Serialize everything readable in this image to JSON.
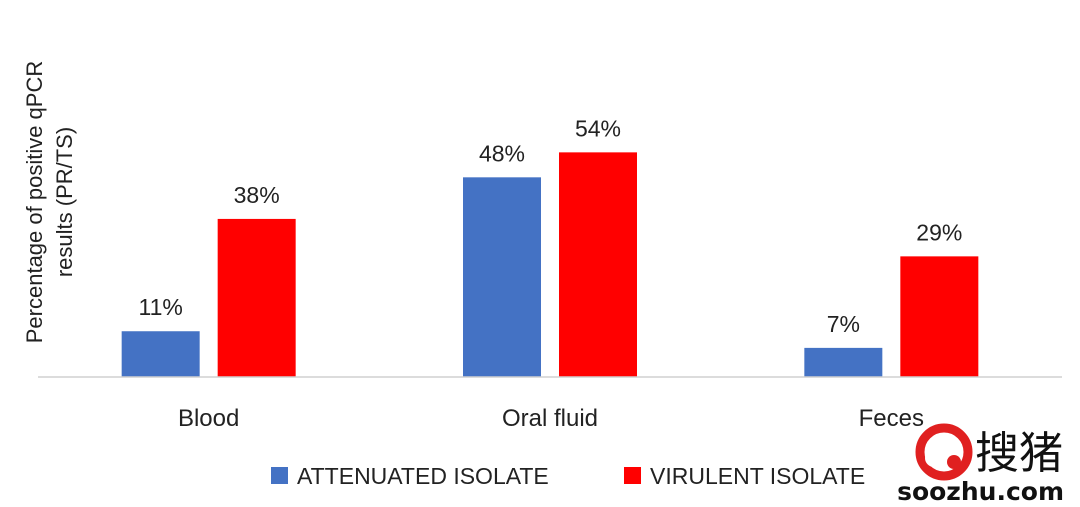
{
  "chart_data": {
    "type": "bar",
    "title": "",
    "xlabel": "",
    "ylabel_lines": [
      "Percentage of positive qPCR",
      "results (PR/TS)"
    ],
    "categories": [
      "Blood",
      "Oral fluid",
      "Feces"
    ],
    "series": [
      {
        "name": "ATTENUATED ISOLATE",
        "color": "#4472C4",
        "values": [
          11,
          48,
          7
        ]
      },
      {
        "name": "VIRULENT ISOLATE",
        "color": "#FF0000",
        "values": [
          38,
          54,
          29
        ]
      }
    ],
    "data_label_suffix": "%",
    "ylim": [
      0,
      60
    ],
    "grid": false,
    "legend_position": "bottom"
  },
  "watermark": {
    "chinese": "搜猪",
    "url": "soozhu.com",
    "color": "#e02020"
  }
}
